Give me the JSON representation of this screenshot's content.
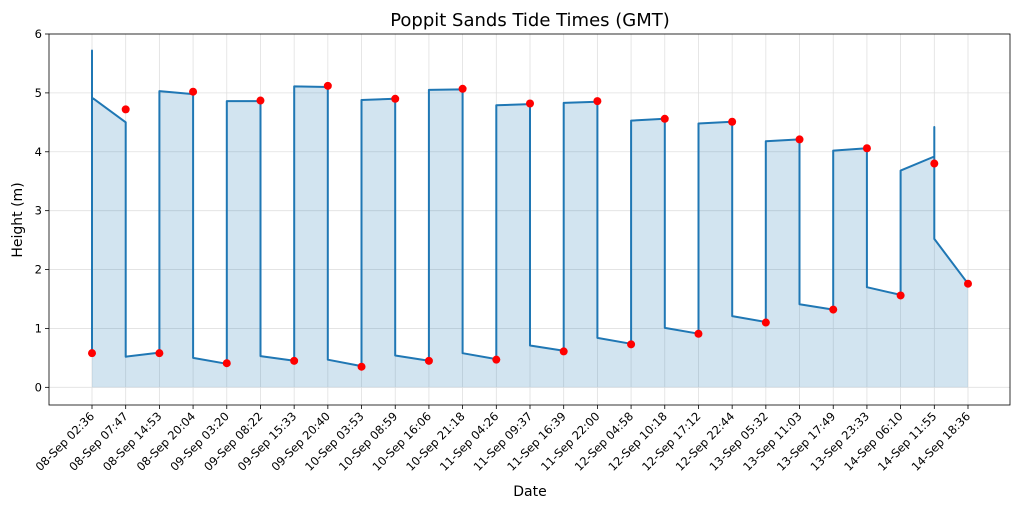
{
  "chart_data": {
    "type": "line",
    "title": "Poppit Sands Tide Times (GMT)",
    "xlabel": "Date",
    "ylabel": "Height (m)",
    "ylim": [
      -0.3,
      6.0
    ],
    "yticks": [
      0,
      1,
      2,
      3,
      4,
      5,
      6
    ],
    "grid": true,
    "colors": {
      "line": "#1f77b4",
      "fill": "#1f77b4",
      "marker": "#ff0000"
    },
    "categories": [
      "08-Sep 02:36",
      "08-Sep 07:47",
      "08-Sep 14:53",
      "08-Sep 20:04",
      "09-Sep 03:20",
      "09-Sep 08:22",
      "09-Sep 15:33",
      "09-Sep 20:40",
      "10-Sep 03:53",
      "10-Sep 08:59",
      "10-Sep 16:06",
      "10-Sep 21:18",
      "11-Sep 04:26",
      "11-Sep 09:37",
      "11-Sep 16:39",
      "11-Sep 22:00",
      "12-Sep 04:58",
      "12-Sep 10:18",
      "12-Sep 17:12",
      "12-Sep 22:44",
      "13-Sep 05:32",
      "13-Sep 11:03",
      "13-Sep 17:49",
      "13-Sep 23:33",
      "14-Sep 06:10",
      "14-Sep 11:55",
      "14-Sep 18:36"
    ],
    "series": [
      {
        "type": "line",
        "values": [
          0.58,
          4.72,
          0.58,
          5.02,
          0.41,
          4.87,
          0.45,
          5.12,
          0.35,
          4.9,
          0.45,
          5.07,
          0.47,
          4.82,
          0.61,
          4.86,
          0.73,
          4.56,
          0.91,
          4.51,
          1.1,
          4.21,
          1.32,
          4.06,
          1.56,
          3.8,
          1.76
        ],
        "path": [
          [
            0,
            0.58
          ],
          [
            0,
            5.72
          ],
          [
            0,
            4.92
          ],
          [
            1,
            4.5
          ],
          [
            1,
            0.52
          ],
          [
            2,
            0.59
          ],
          [
            2,
            5.03
          ],
          [
            3,
            4.98
          ],
          [
            3,
            0.5
          ],
          [
            4,
            0.4
          ],
          [
            4,
            4.86
          ],
          [
            5,
            4.86
          ],
          [
            5,
            0.53
          ],
          [
            6,
            0.45
          ],
          [
            6,
            5.11
          ],
          [
            7,
            5.1
          ],
          [
            7,
            0.47
          ],
          [
            8,
            0.36
          ],
          [
            8,
            4.88
          ],
          [
            9,
            4.9
          ],
          [
            9,
            0.54
          ],
          [
            10,
            0.45
          ],
          [
            10,
            5.05
          ],
          [
            11,
            5.06
          ],
          [
            11,
            0.58
          ],
          [
            12,
            0.48
          ],
          [
            12,
            4.79
          ],
          [
            13,
            4.81
          ],
          [
            13,
            0.71
          ],
          [
            14,
            0.62
          ],
          [
            14,
            4.83
          ],
          [
            15,
            4.85
          ],
          [
            15,
            0.84
          ],
          [
            16,
            0.74
          ],
          [
            16,
            4.53
          ],
          [
            17,
            4.56
          ],
          [
            17,
            1.01
          ],
          [
            18,
            0.91
          ],
          [
            18,
            4.48
          ],
          [
            19,
            4.51
          ],
          [
            19,
            1.21
          ],
          [
            20,
            1.11
          ],
          [
            20,
            4.18
          ],
          [
            21,
            4.21
          ],
          [
            21,
            1.41
          ],
          [
            22,
            1.32
          ],
          [
            22,
            4.02
          ],
          [
            23,
            4.06
          ],
          [
            23,
            1.7
          ],
          [
            24,
            1.57
          ],
          [
            24,
            3.68
          ],
          [
            25,
            3.92
          ],
          [
            25,
            4.42
          ],
          [
            25,
            2.52
          ],
          [
            26,
            1.76
          ]
        ]
      }
    ]
  }
}
